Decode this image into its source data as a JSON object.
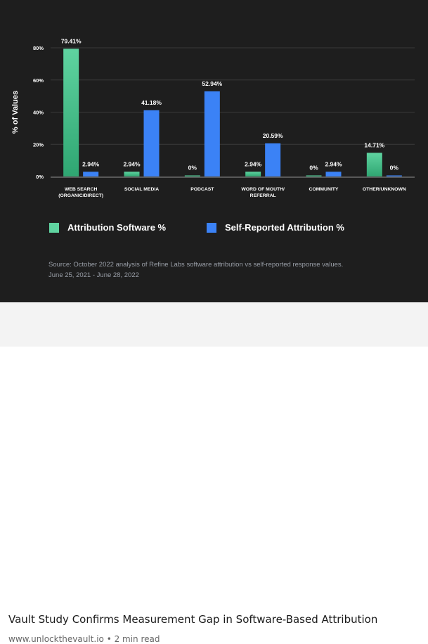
{
  "chart_data": {
    "type": "bar",
    "ylabel": "% of Values",
    "ylim": [
      0,
      80
    ],
    "yticks": [
      "0%",
      "20%",
      "40%",
      "60%",
      "80%"
    ],
    "ytick_values": [
      0,
      20,
      40,
      60,
      80
    ],
    "grid": true,
    "categories": [
      [
        "WEB SEARCH",
        "(ORGANIC/DIRECT)"
      ],
      [
        "SOCIAL MEDIA"
      ],
      [
        "PODCAST"
      ],
      [
        "WORD OF MOUTH/",
        "REFERRAL"
      ],
      [
        "COMMUNITY"
      ],
      [
        "OTHER/UNKNOWN"
      ]
    ],
    "series": [
      {
        "name": "Attribution Software %",
        "color": "#5fd3a0",
        "values": [
          79.41,
          2.94,
          0,
          2.94,
          0,
          14.71
        ],
        "labels": [
          "79.41%",
          "2.94%",
          "0%",
          "2.94%",
          "0%",
          "14.71%"
        ]
      },
      {
        "name": "Self-Reported Attribution %",
        "color": "#3b82f6",
        "values": [
          2.94,
          41.18,
          52.94,
          20.59,
          2.94,
          0
        ],
        "labels": [
          "2.94%",
          "41.18%",
          "52.94%",
          "20.59%",
          "2.94%",
          "0%"
        ]
      }
    ],
    "legend_position": "bottom",
    "source": "Source: October 2022 analysis of Refine Labs software attribution vs self-reported response values.",
    "source_dates": "June 25, 2021 - June 28, 2022"
  },
  "article": {
    "title": "Vault Study Confirms Measurement Gap in Software-Based Attribution",
    "meta": "www.unlockthevault.io • 2 min read"
  }
}
